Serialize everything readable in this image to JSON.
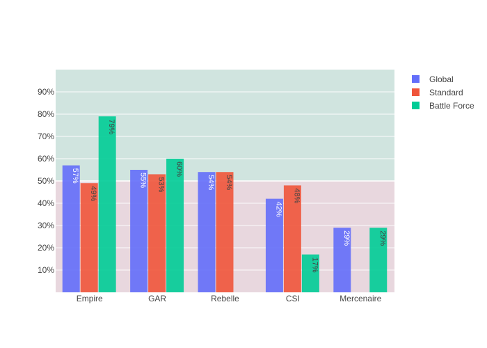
{
  "chart_data": {
    "type": "bar",
    "categories": [
      "Empire",
      "GAR",
      "Rebelle",
      "CSI",
      "Mercenaire"
    ],
    "series": [
      {
        "name": "Global",
        "color": "#636efa",
        "values": [
          57,
          55,
          54,
          42,
          29
        ],
        "labels": [
          "57%",
          "55%",
          "54%",
          "42%",
          "29%"
        ]
      },
      {
        "name": "Standard",
        "color": "#ef553b",
        "values": [
          49,
          53,
          54,
          48,
          null
        ],
        "labels": [
          "49%",
          "53%",
          "54%",
          "48%",
          null
        ]
      },
      {
        "name": "Battle Force",
        "color": "#00cc96",
        "values": [
          79,
          60,
          null,
          17,
          29
        ],
        "labels": [
          "79%",
          "60%",
          null,
          "17%",
          "29%"
        ]
      }
    ],
    "y_ticks": [
      "10%",
      "20%",
      "30%",
      "40%",
      "50%",
      "60%",
      "70%",
      "80%",
      "90%"
    ],
    "ylim": [
      0,
      100
    ],
    "reference_line": 50,
    "bands": [
      {
        "from": 50,
        "to": 100,
        "color": "#d0e4df"
      },
      {
        "from": 0,
        "to": 50,
        "color": "#e8d7de"
      }
    ],
    "grid": true,
    "legend_position": "top-right"
  }
}
